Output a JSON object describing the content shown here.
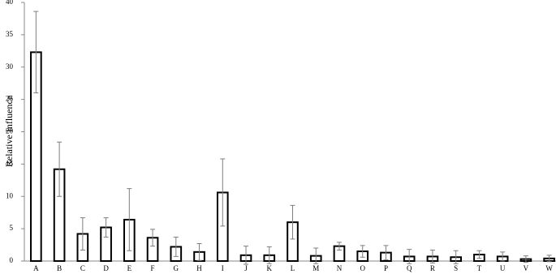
{
  "chart_data": {
    "type": "bar",
    "y_label": "Relative Influence",
    "categories": [
      "A",
      "B",
      "C",
      "D",
      "E",
      "F",
      "G",
      "H",
      "I",
      "J",
      "K",
      "L",
      "M",
      "N",
      "O",
      "P",
      "Q",
      "R",
      "S",
      "T",
      "U",
      "V",
      "W"
    ],
    "values": [
      32.3,
      14.2,
      4.2,
      5.2,
      6.4,
      3.6,
      2.2,
      1.4,
      10.6,
      0.9,
      0.9,
      6.0,
      0.8,
      2.3,
      1.5,
      1.3,
      0.7,
      0.7,
      0.6,
      1.0,
      0.7,
      0.3,
      0.4
    ],
    "errors": [
      6.3,
      4.2,
      2.5,
      1.5,
      4.8,
      1.3,
      1.5,
      1.3,
      5.2,
      1.4,
      1.3,
      2.6,
      1.2,
      0.6,
      0.9,
      1.1,
      1.1,
      1.0,
      1.0,
      0.6,
      0.7,
      0.5,
      0.5
    ],
    "color": "#ffffff",
    "edge_color": "#000000",
    "error_color": "#7f7f7f",
    "ylim": [
      0,
      40
    ],
    "yticks": [
      0,
      5,
      10,
      15,
      20,
      25,
      30,
      35,
      40
    ],
    "grid": false
  }
}
